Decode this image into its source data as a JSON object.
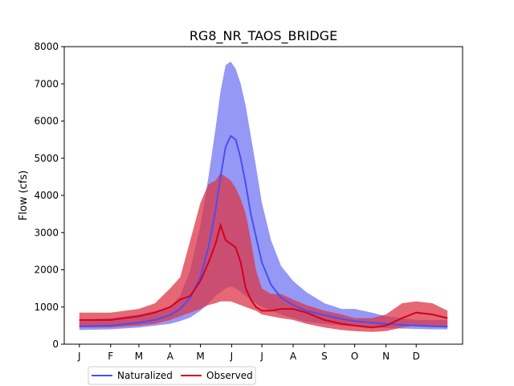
{
  "chart_data": {
    "type": "line",
    "title": "RG8_NR_TAOS_BRIDGE",
    "xlabel": "",
    "ylabel": "Flow (cfs)",
    "ylim": [
      0,
      8000
    ],
    "xlim": [
      -15,
      380
    ],
    "x_ticks": [
      {
        "label": "J",
        "x": 0
      },
      {
        "label": "F",
        "x": 31
      },
      {
        "label": "M",
        "x": 59
      },
      {
        "label": "A",
        "x": 90
      },
      {
        "label": "M",
        "x": 120
      },
      {
        "label": "J",
        "x": 151
      },
      {
        "label": "J",
        "x": 181
      },
      {
        "label": "A",
        "x": 212
      },
      {
        "label": "S",
        "x": 243
      },
      {
        "label": "O",
        "x": 273
      },
      {
        "label": "N",
        "x": 304
      },
      {
        "label": "D",
        "x": 334
      }
    ],
    "y_ticks": [
      0,
      1000,
      2000,
      3000,
      4000,
      5000,
      6000,
      7000,
      8000
    ],
    "grid": false,
    "legend": {
      "placement": "bottom-left outside",
      "entries": [
        "Naturalized",
        "Observed"
      ]
    },
    "colors": {
      "naturalized_line": "#4b4ef0",
      "naturalized_band": "#7a7ef2",
      "observed_line": "#d4001e",
      "observed_band": "#dc3545"
    },
    "series": [
      {
        "name": "Naturalized",
        "x": [
          0,
          31,
          59,
          75,
          90,
          100,
          110,
          120,
          128,
          135,
          140,
          145,
          150,
          155,
          160,
          165,
          170,
          175,
          181,
          190,
          200,
          212,
          225,
          243,
          260,
          273,
          290,
          304,
          320,
          334,
          350,
          365
        ],
        "median": [
          480,
          500,
          580,
          650,
          780,
          950,
          1250,
          1800,
          2600,
          3600,
          4500,
          5300,
          5600,
          5500,
          5000,
          4300,
          3500,
          2900,
          2200,
          1600,
          1250,
          1050,
          900,
          780,
          680,
          620,
          580,
          550,
          520,
          500,
          480,
          470
        ],
        "low": [
          380,
          400,
          450,
          500,
          550,
          620,
          720,
          900,
          1100,
          1300,
          1400,
          1500,
          1550,
          1500,
          1400,
          1300,
          1200,
          1100,
          1000,
          900,
          800,
          700,
          600,
          550,
          500,
          480,
          450,
          430,
          420,
          410,
          400,
          400
        ],
        "high": [
          650,
          700,
          800,
          900,
          1000,
          1300,
          2000,
          3200,
          4500,
          5800,
          6800,
          7500,
          7600,
          7400,
          7000,
          6400,
          5600,
          4800,
          3800,
          2800,
          2100,
          1700,
          1400,
          1100,
          950,
          950,
          850,
          750,
          700,
          650,
          650,
          650
        ]
      },
      {
        "name": "Observed",
        "x": [
          0,
          31,
          59,
          75,
          90,
          100,
          110,
          120,
          128,
          135,
          140,
          145,
          150,
          155,
          160,
          165,
          170,
          175,
          181,
          190,
          200,
          212,
          225,
          243,
          260,
          273,
          290,
          304,
          320,
          334,
          350,
          365
        ],
        "median": [
          650,
          650,
          750,
          850,
          1000,
          1200,
          1300,
          1700,
          2200,
          2700,
          3200,
          2800,
          2700,
          2600,
          2200,
          1500,
          1200,
          1000,
          900,
          900,
          950,
          950,
          850,
          650,
          550,
          500,
          450,
          500,
          700,
          850,
          800,
          700
        ],
        "low": [
          450,
          450,
          500,
          550,
          650,
          750,
          850,
          950,
          1050,
          1100,
          1150,
          1150,
          1150,
          1100,
          1050,
          1000,
          950,
          900,
          800,
          750,
          700,
          650,
          550,
          450,
          380,
          350,
          330,
          350,
          450,
          500,
          500,
          450
        ],
        "high": [
          850,
          850,
          950,
          1100,
          1500,
          1800,
          2800,
          3800,
          4300,
          4400,
          4600,
          4500,
          4400,
          4200,
          3900,
          3500,
          2800,
          2000,
          1500,
          1350,
          1350,
          1200,
          1050,
          900,
          800,
          700,
          700,
          800,
          1100,
          1150,
          1100,
          900
        ]
      }
    ]
  }
}
